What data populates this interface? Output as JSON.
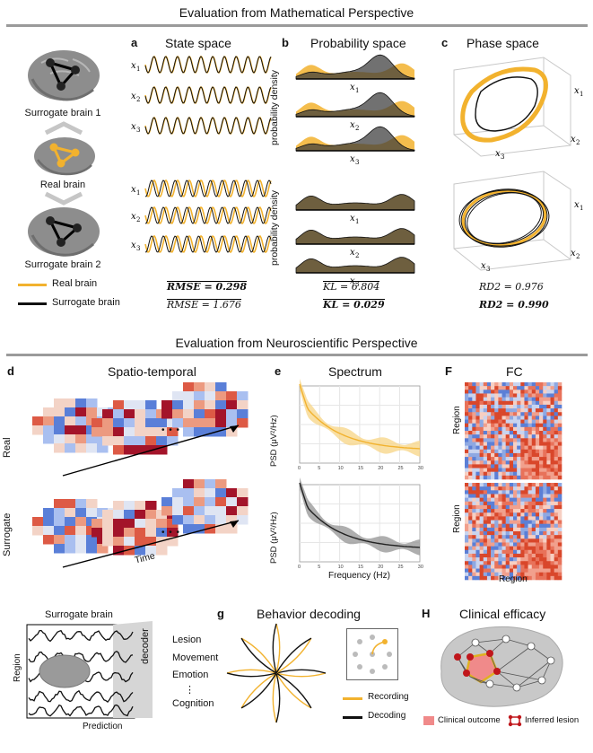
{
  "sections": {
    "math_title": "Evaluation from Mathematical Perspective",
    "neuro_title": "Evaluation from Neuroscientific Perspective"
  },
  "brains": {
    "surrogate1": "Surrogate brain 1",
    "real": "Real brain",
    "surrogate2": "Surrogate brain 2"
  },
  "legend": {
    "real": "Real brain",
    "surrogate": "Surrogate brain",
    "real_color": "#f2b22e",
    "surrogate_color": "#111111"
  },
  "panel_a": {
    "label": "a",
    "title": "State space",
    "vars": [
      "x1",
      "x2",
      "x3"
    ],
    "metric_top": "RMSE = 0.298",
    "metric_bottom": "RMSE = 1.676"
  },
  "panel_b": {
    "label": "b",
    "title": "Probability space",
    "ylabel": "probability density",
    "metric_top": "KL = 6.804",
    "metric_bottom": "KL = 0.029"
  },
  "panel_c": {
    "label": "c",
    "title": "Phase space",
    "metric_top": "RD2 = 0.976",
    "metric_bottom": "RD2 = 0.990"
  },
  "panel_d": {
    "label": "d",
    "title": "Spatio-temporal",
    "row_real": "Real",
    "row_surrogate": "Surrogate",
    "time": "Time",
    "dots": "• • •"
  },
  "panel_e": {
    "label": "e",
    "title": "Spectrum",
    "ylabel": "PSD (μV²/Hz)",
    "xlabel": "Frequency (Hz)",
    "xticks": [
      "0",
      "5",
      "10",
      "15",
      "20",
      "25",
      "30"
    ]
  },
  "panel_f": {
    "label": "F",
    "title": "FC",
    "ylabel": "Region",
    "xlabel": "Region"
  },
  "decoder": {
    "title": "Surrogate brain",
    "ylabel": "Region",
    "xlabel": "Prediction",
    "box": "decoder",
    "outputs": [
      "Lesion",
      "Movement",
      "Emotion",
      "⋮",
      "Cognition"
    ]
  },
  "panel_g": {
    "label": "g",
    "title": "Behavior decoding",
    "legend_recording": "Recording",
    "legend_decoding": "Decoding"
  },
  "panel_h": {
    "label": "H",
    "title": "Clinical efficacy",
    "legend_outcome": "Clinical outcome",
    "legend_lesion": "Inferred lesion"
  }
}
